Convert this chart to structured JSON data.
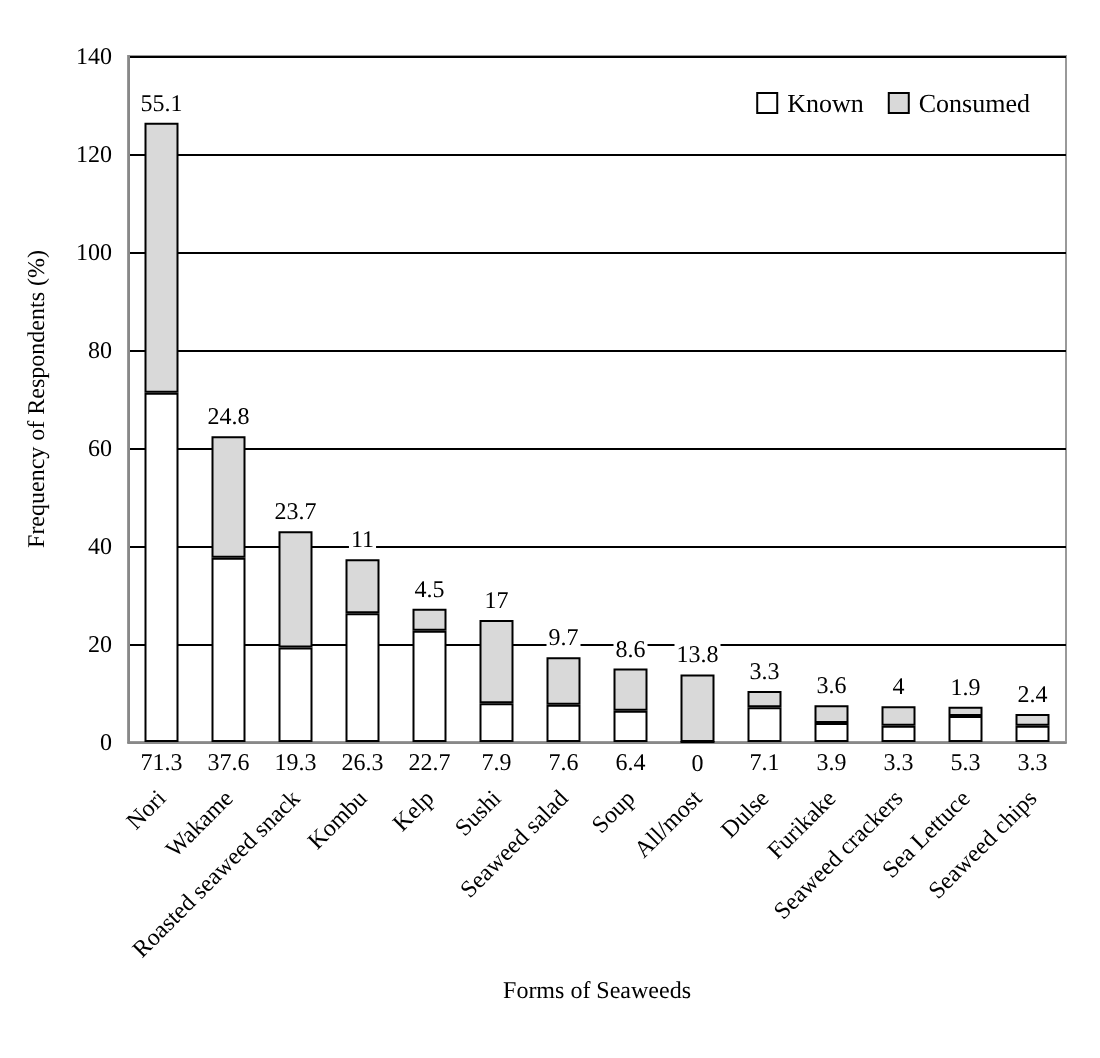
{
  "chart_data": {
    "type": "bar",
    "stacked": true,
    "xlabel": "Forms of Seaweeds",
    "ylabel": "Frequency of Respondents (%)",
    "categories": [
      "Nori",
      "Wakame",
      "Roasted seaweed snack",
      "Kombu",
      "Kelp",
      "Sushi",
      "Seaweed salad",
      "Soup",
      "All/most",
      "Dulse",
      "Furikake",
      "Seaweed crackers",
      "Sea Lettuce",
      "Seaweed chips"
    ],
    "series": [
      {
        "name": "Known",
        "color": "#ffffff",
        "values": [
          71.3,
          37.6,
          19.3,
          26.3,
          22.7,
          7.9,
          7.6,
          6.4,
          0,
          7.1,
          3.9,
          3.3,
          5.3,
          3.3
        ]
      },
      {
        "name": "Consumed",
        "color": "#d9d9d9",
        "values": [
          55.1,
          24.8,
          23.7,
          11,
          4.5,
          17,
          9.7,
          8.6,
          13.8,
          3.3,
          3.6,
          4,
          1.9,
          2.4
        ]
      }
    ],
    "ylim": [
      0,
      140
    ],
    "yticks": [
      0,
      20,
      40,
      60,
      80,
      100,
      120,
      140
    ],
    "grid": "y",
    "legend": "top right",
    "data_labels": true
  }
}
